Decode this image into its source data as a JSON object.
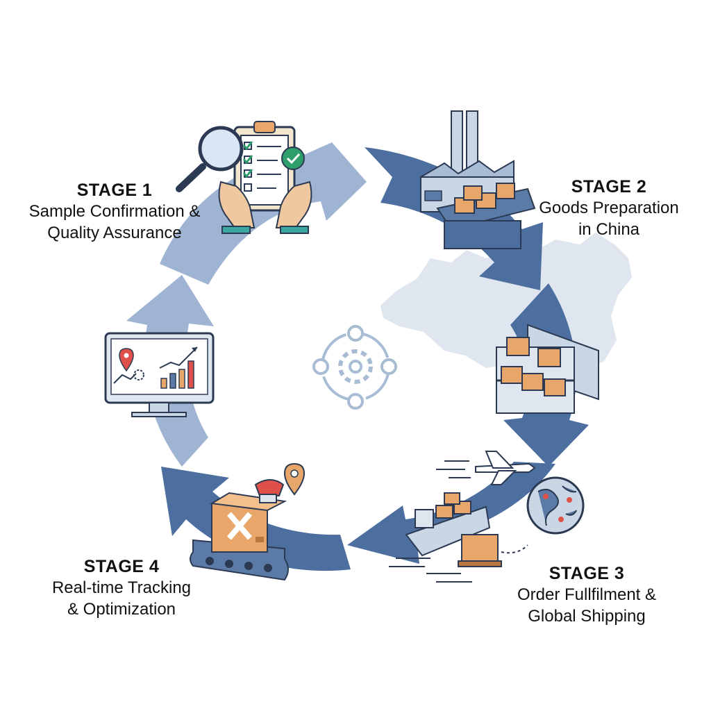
{
  "stages": [
    {
      "title": "STAGE 1",
      "line1": "Sample Confirmation &",
      "line2": "Quality Assurance"
    },
    {
      "title": "STAGE 2",
      "line1": "Goods Preparation",
      "line2": "in China"
    },
    {
      "title": "STAGE 3",
      "line1": "Order Fullfilment &",
      "line2": "Global Shipping"
    },
    {
      "title": "STAGE 4",
      "line1": "Real-time Tracking",
      "line2": "& Optimization"
    }
  ],
  "colors": {
    "arrow_light": "#9fb4d2",
    "arrow_dark": "#4c6f9f",
    "map": "#dfe6ef",
    "box": "#e8a66b",
    "box_dark": "#b9773f",
    "machine": "#5b7aa6",
    "outline": "#2b3a52",
    "check": "#2e9e6a",
    "pin": "#e0504a"
  },
  "icons": [
    "clipboard-checklist-icon",
    "magnifier-icon",
    "factory-icon",
    "warehouse-shelf-icon",
    "airplane-icon",
    "cargo-ship-icon",
    "globe-icon",
    "conveyor-box-icon",
    "location-pin-icon",
    "monitor-analytics-icon",
    "cycle-gear-icon"
  ]
}
